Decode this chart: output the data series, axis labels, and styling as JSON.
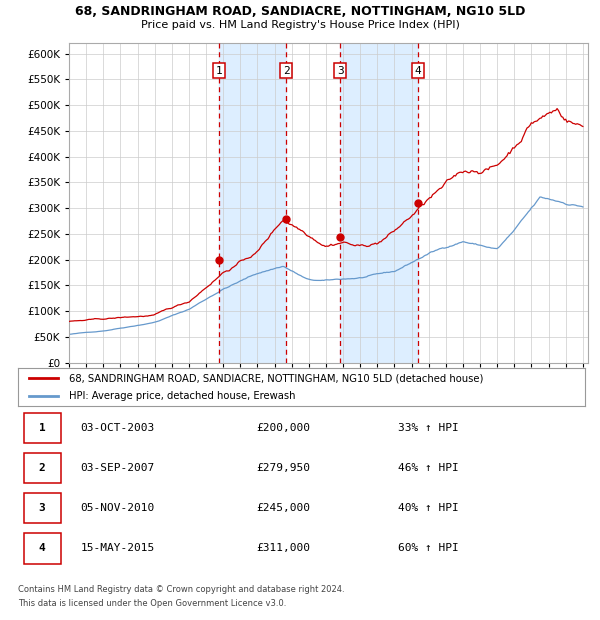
{
  "title1": "68, SANDRINGHAM ROAD, SANDIACRE, NOTTINGHAM, NG10 5LD",
  "title2": "Price paid vs. HM Land Registry's House Price Index (HPI)",
  "legend_line1": "68, SANDRINGHAM ROAD, SANDIACRE, NOTTINGHAM, NG10 5LD (detached house)",
  "legend_line2": "HPI: Average price, detached house, Erewash",
  "footer1": "Contains HM Land Registry data © Crown copyright and database right 2024.",
  "footer2": "This data is licensed under the Open Government Licence v3.0.",
  "sale_dates_year": [
    2003.75,
    2007.67,
    2010.84,
    2015.37
  ],
  "sale_prices": [
    200000,
    279950,
    245000,
    311000
  ],
  "sale_labels": [
    "1",
    "2",
    "3",
    "4"
  ],
  "sale_table": [
    [
      "1",
      "03-OCT-2003",
      "£200,000",
      "33% ↑ HPI"
    ],
    [
      "2",
      "03-SEP-2007",
      "£279,950",
      "46% ↑ HPI"
    ],
    [
      "3",
      "05-NOV-2010",
      "£245,000",
      "40% ↑ HPI"
    ],
    [
      "4",
      "15-MAY-2015",
      "£311,000",
      "60% ↑ HPI"
    ]
  ],
  "red_color": "#cc0000",
  "blue_color": "#6699cc",
  "shade_color": "#ddeeff",
  "background_color": "#ffffff",
  "grid_color": "#cccccc",
  "ylim": [
    0,
    620000
  ],
  "yticks": [
    0,
    50000,
    100000,
    150000,
    200000,
    250000,
    300000,
    350000,
    400000,
    450000,
    500000,
    550000,
    600000
  ],
  "hpi_key_years": [
    1995,
    1997,
    2000,
    2002,
    2004,
    2006,
    2007.5,
    2009,
    2010,
    2012,
    2014,
    2016,
    2018,
    2020,
    2021,
    2022.5,
    2024,
    2025
  ],
  "hpi_key_vals": [
    55000,
    62000,
    80000,
    105000,
    145000,
    175000,
    190000,
    162000,
    160000,
    165000,
    175000,
    210000,
    235000,
    220000,
    255000,
    315000,
    305000,
    300000
  ],
  "prop_key_years": [
    1995,
    1997,
    2000,
    2002,
    2004,
    2006,
    2007.5,
    2009,
    2010,
    2011,
    2012,
    2013,
    2014,
    2015.4,
    2016,
    2018,
    2020,
    2021,
    2022,
    2023.5,
    2024,
    2025
  ],
  "prop_key_vals": [
    80000,
    83000,
    90000,
    115000,
    175000,
    215000,
    280000,
    255000,
    240000,
    250000,
    240000,
    248000,
    270000,
    311000,
    330000,
    375000,
    390000,
    430000,
    480000,
    505000,
    490000,
    475000
  ],
  "hpi_noise": 0.008,
  "prop_noise": 0.015,
  "random_seed": 42
}
